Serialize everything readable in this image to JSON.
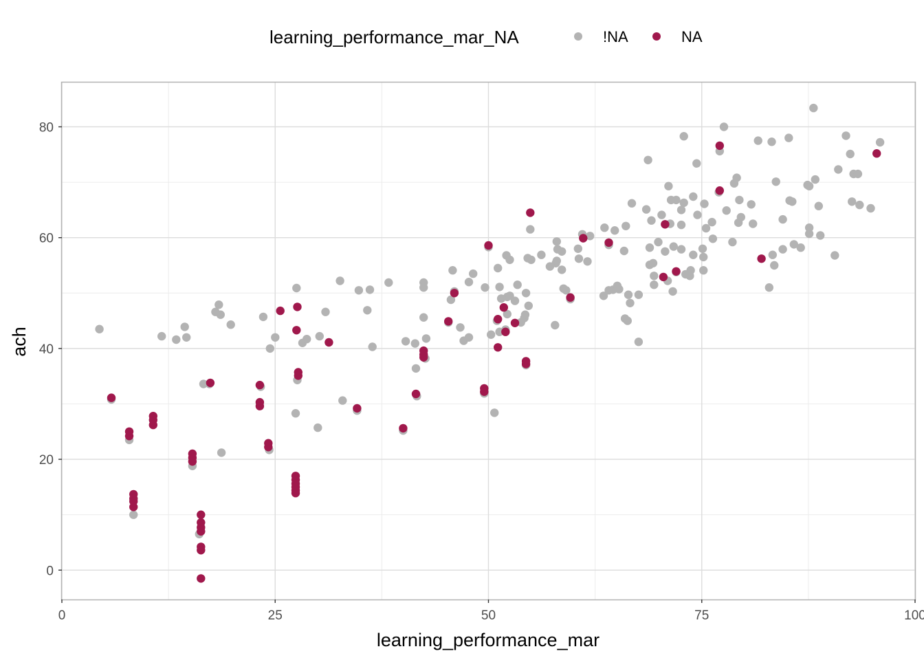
{
  "chart_data": {
    "type": "scatter",
    "xlabel": "learning_performance_mar",
    "ylabel": "ach",
    "xlim": [
      0,
      100
    ],
    "ylim": [
      -5.3,
      88
    ],
    "x_ticks": [
      0,
      25,
      50,
      75,
      100
    ],
    "x_tick_labels": [
      "0",
      "25",
      "50",
      "75",
      "100"
    ],
    "y_ticks": [
      0,
      20,
      40,
      60,
      80
    ],
    "y_tick_labels": [
      "0",
      "20",
      "40",
      "60",
      "80"
    ],
    "grid": true,
    "legend_position": "top",
    "legend": {
      "title": "learning_performance_mar_NA",
      "entries": [
        {
          "label": "!NA",
          "color": "#b3b3b3"
        },
        {
          "label": "NA",
          "color": "#a0184c"
        }
      ]
    },
    "series": [
      {
        "name": "!NA",
        "color": "#b3b3b3",
        "points": [
          [
            4.4,
            43.5
          ],
          [
            5.8,
            30.8
          ],
          [
            7.9,
            23.5
          ],
          [
            8.4,
            10.0
          ],
          [
            11.7,
            42.2
          ],
          [
            13.4,
            41.6
          ],
          [
            14.4,
            43.9
          ],
          [
            14.6,
            42.0
          ],
          [
            15.3,
            18.8
          ],
          [
            16.1,
            6.5
          ],
          [
            16.6,
            33.6
          ],
          [
            17.3,
            33.6
          ],
          [
            18.0,
            46.6
          ],
          [
            18.4,
            47.9
          ],
          [
            18.6,
            46.1
          ],
          [
            18.7,
            21.2
          ],
          [
            19.8,
            44.3
          ],
          [
            23.3,
            33.1
          ],
          [
            23.6,
            45.7
          ],
          [
            24.3,
            21.7
          ],
          [
            24.4,
            40.0
          ],
          [
            25.0,
            42.0
          ],
          [
            27.4,
            28.3
          ],
          [
            27.5,
            50.9
          ],
          [
            27.6,
            34.3
          ],
          [
            28.2,
            41.0
          ],
          [
            28.7,
            41.7
          ],
          [
            30.0,
            25.7
          ],
          [
            30.2,
            42.2
          ],
          [
            30.9,
            46.6
          ],
          [
            32.6,
            52.2
          ],
          [
            32.9,
            30.6
          ],
          [
            34.6,
            28.8
          ],
          [
            34.8,
            50.5
          ],
          [
            35.8,
            46.9
          ],
          [
            36.1,
            50.6
          ],
          [
            36.4,
            40.3
          ],
          [
            38.3,
            51.9
          ],
          [
            40.0,
            25.2
          ],
          [
            40.3,
            41.3
          ],
          [
            41.4,
            40.9
          ],
          [
            41.5,
            36.4
          ],
          [
            41.6,
            31.4
          ],
          [
            42.4,
            51.9
          ],
          [
            42.4,
            51.0
          ],
          [
            42.4,
            45.6
          ],
          [
            42.6,
            38.2
          ],
          [
            42.7,
            41.8
          ],
          [
            45.3,
            44.7
          ],
          [
            45.6,
            48.8
          ],
          [
            45.8,
            54.1
          ],
          [
            46.0,
            50.3
          ],
          [
            46.7,
            43.8
          ],
          [
            47.1,
            41.4
          ],
          [
            47.7,
            42.0
          ],
          [
            47.7,
            52.0
          ],
          [
            48.2,
            53.5
          ],
          [
            49.5,
            31.9
          ],
          [
            49.6,
            51.0
          ],
          [
            50.0,
            58.3
          ],
          [
            50.3,
            42.5
          ],
          [
            50.7,
            28.4
          ],
          [
            51.0,
            45.0
          ],
          [
            51.1,
            54.5
          ],
          [
            51.3,
            51.1
          ],
          [
            51.3,
            43.0
          ],
          [
            51.5,
            49.0
          ],
          [
            52.0,
            43.4
          ],
          [
            52.1,
            56.8
          ],
          [
            52.2,
            49.3
          ],
          [
            52.2,
            46.2
          ],
          [
            52.5,
            49.5
          ],
          [
            52.5,
            56.0
          ],
          [
            53.1,
            48.6
          ],
          [
            53.4,
            51.5
          ],
          [
            53.8,
            44.7
          ],
          [
            54.2,
            45.5
          ],
          [
            54.3,
            46.1
          ],
          [
            54.4,
            50.0
          ],
          [
            54.4,
            37.0
          ],
          [
            54.6,
            56.3
          ],
          [
            54.7,
            47.7
          ],
          [
            54.9,
            61.5
          ],
          [
            55.0,
            56.0
          ],
          [
            56.2,
            56.9
          ],
          [
            57.2,
            54.8
          ],
          [
            57.8,
            44.2
          ],
          [
            57.9,
            55.4
          ],
          [
            58.0,
            59.3
          ],
          [
            58.0,
            55.8
          ],
          [
            58.1,
            57.9
          ],
          [
            58.6,
            54.2
          ],
          [
            58.6,
            57.5
          ],
          [
            58.8,
            50.8
          ],
          [
            59.1,
            50.5
          ],
          [
            59.6,
            48.9
          ],
          [
            60.5,
            58.0
          ],
          [
            60.6,
            56.2
          ],
          [
            61.0,
            60.6
          ],
          [
            61.6,
            55.7
          ],
          [
            61.9,
            60.3
          ],
          [
            63.5,
            49.5
          ],
          [
            63.6,
            61.8
          ],
          [
            64.1,
            50.5
          ],
          [
            64.1,
            58.7
          ],
          [
            64.6,
            50.6
          ],
          [
            64.8,
            61.3
          ],
          [
            65.1,
            51.3
          ],
          [
            65.3,
            50.7
          ],
          [
            65.9,
            57.6
          ],
          [
            66.0,
            45.4
          ],
          [
            66.1,
            62.1
          ],
          [
            66.3,
            45.0
          ],
          [
            66.4,
            49.7
          ],
          [
            66.6,
            48.2
          ],
          [
            66.8,
            66.2
          ],
          [
            67.6,
            49.7
          ],
          [
            67.6,
            41.2
          ],
          [
            68.5,
            65.1
          ],
          [
            68.7,
            74.0
          ],
          [
            68.9,
            58.2
          ],
          [
            68.9,
            55.1
          ],
          [
            69.1,
            63.1
          ],
          [
            69.3,
            55.4
          ],
          [
            69.4,
            53.1
          ],
          [
            69.4,
            51.5
          ],
          [
            69.9,
            59.2
          ],
          [
            70.3,
            64.1
          ],
          [
            70.7,
            57.5
          ],
          [
            70.7,
            62.4
          ],
          [
            71.0,
            52.2
          ],
          [
            71.1,
            69.3
          ],
          [
            71.3,
            62.5
          ],
          [
            71.4,
            66.8
          ],
          [
            71.6,
            50.3
          ],
          [
            71.7,
            58.4
          ],
          [
            72.0,
            66.8
          ],
          [
            72.0,
            53.8
          ],
          [
            72.6,
            57.9
          ],
          [
            72.6,
            62.3
          ],
          [
            72.6,
            65.0
          ],
          [
            72.9,
            66.3
          ],
          [
            72.9,
            78.3
          ],
          [
            73.1,
            53.4
          ],
          [
            73.6,
            53.1
          ],
          [
            73.7,
            54.1
          ],
          [
            74.0,
            56.9
          ],
          [
            74.0,
            67.4
          ],
          [
            74.4,
            73.4
          ],
          [
            74.5,
            64.1
          ],
          [
            75.1,
            58.0
          ],
          [
            75.2,
            56.5
          ],
          [
            75.2,
            54.1
          ],
          [
            75.3,
            66.1
          ],
          [
            75.5,
            61.7
          ],
          [
            76.2,
            62.8
          ],
          [
            76.3,
            59.8
          ],
          [
            77.0,
            68.2
          ],
          [
            77.1,
            75.6
          ],
          [
            77.6,
            80.0
          ],
          [
            77.9,
            64.9
          ],
          [
            78.6,
            59.2
          ],
          [
            78.8,
            69.8
          ],
          [
            79.1,
            70.8
          ],
          [
            79.3,
            62.7
          ],
          [
            79.4,
            66.8
          ],
          [
            79.6,
            63.7
          ],
          [
            80.8,
            66.0
          ],
          [
            81.0,
            62.5
          ],
          [
            81.6,
            77.5
          ],
          [
            82.9,
            51.0
          ],
          [
            83.2,
            77.3
          ],
          [
            83.3,
            56.9
          ],
          [
            83.5,
            55.0
          ],
          [
            83.7,
            70.1
          ],
          [
            84.5,
            57.9
          ],
          [
            84.5,
            63.3
          ],
          [
            85.2,
            78.0
          ],
          [
            85.3,
            66.7
          ],
          [
            85.6,
            66.5
          ],
          [
            85.8,
            58.8
          ],
          [
            86.6,
            58.2
          ],
          [
            87.4,
            69.5
          ],
          [
            87.6,
            69.3
          ],
          [
            87.6,
            61.8
          ],
          [
            87.6,
            60.7
          ],
          [
            88.1,
            83.4
          ],
          [
            88.3,
            70.5
          ],
          [
            88.7,
            65.7
          ],
          [
            88.9,
            60.4
          ],
          [
            90.6,
            56.8
          ],
          [
            91.0,
            72.3
          ],
          [
            91.9,
            78.4
          ],
          [
            92.4,
            75.1
          ],
          [
            92.6,
            66.5
          ],
          [
            92.8,
            71.5
          ],
          [
            93.3,
            71.5
          ],
          [
            93.5,
            65.9
          ],
          [
            94.8,
            65.3
          ],
          [
            95.9,
            77.2
          ]
        ]
      },
      {
        "name": "NA",
        "color": "#a0184c",
        "points": [
          [
            5.8,
            31.1
          ],
          [
            7.9,
            25.0
          ],
          [
            7.9,
            24.2
          ],
          [
            8.4,
            13.7
          ],
          [
            8.4,
            12.9
          ],
          [
            8.4,
            12.4
          ],
          [
            8.4,
            11.4
          ],
          [
            10.7,
            27.8
          ],
          [
            10.7,
            27.1
          ],
          [
            10.7,
            26.2
          ],
          [
            15.3,
            21.0
          ],
          [
            15.3,
            20.3
          ],
          [
            15.3,
            19.6
          ],
          [
            16.3,
            10.0
          ],
          [
            16.3,
            8.6
          ],
          [
            16.3,
            7.7
          ],
          [
            16.3,
            7.0
          ],
          [
            16.3,
            4.2
          ],
          [
            16.3,
            3.6
          ],
          [
            16.3,
            -1.5
          ],
          [
            17.4,
            33.8
          ],
          [
            23.2,
            33.4
          ],
          [
            23.2,
            30.3
          ],
          [
            23.2,
            29.6
          ],
          [
            24.2,
            22.9
          ],
          [
            24.2,
            22.2
          ],
          [
            25.6,
            46.8
          ],
          [
            27.4,
            17.0
          ],
          [
            27.4,
            16.3
          ],
          [
            27.4,
            15.6
          ],
          [
            27.4,
            15.0
          ],
          [
            27.4,
            14.4
          ],
          [
            27.4,
            13.9
          ],
          [
            27.5,
            43.3
          ],
          [
            27.6,
            47.5
          ],
          [
            27.7,
            35.7
          ],
          [
            27.7,
            35.1
          ],
          [
            31.3,
            41.1
          ],
          [
            34.6,
            29.2
          ],
          [
            40.0,
            25.6
          ],
          [
            41.5,
            31.8
          ],
          [
            42.4,
            39.6
          ],
          [
            42.4,
            38.9
          ],
          [
            42.4,
            38.4
          ],
          [
            45.3,
            44.9
          ],
          [
            46.0,
            50.0
          ],
          [
            49.5,
            32.8
          ],
          [
            49.5,
            32.2
          ],
          [
            50.0,
            58.6
          ],
          [
            51.1,
            45.3
          ],
          [
            51.1,
            40.2
          ],
          [
            51.8,
            47.4
          ],
          [
            52.0,
            43.0
          ],
          [
            53.1,
            44.6
          ],
          [
            54.4,
            37.7
          ],
          [
            54.4,
            37.2
          ],
          [
            54.9,
            64.5
          ],
          [
            59.6,
            49.2
          ],
          [
            61.1,
            59.9
          ],
          [
            64.1,
            59.1
          ],
          [
            70.5,
            52.9
          ],
          [
            70.7,
            62.4
          ],
          [
            72.0,
            53.9
          ],
          [
            77.1,
            76.6
          ],
          [
            77.1,
            68.5
          ],
          [
            82.0,
            56.2
          ],
          [
            95.5,
            75.2
          ]
        ]
      }
    ]
  }
}
